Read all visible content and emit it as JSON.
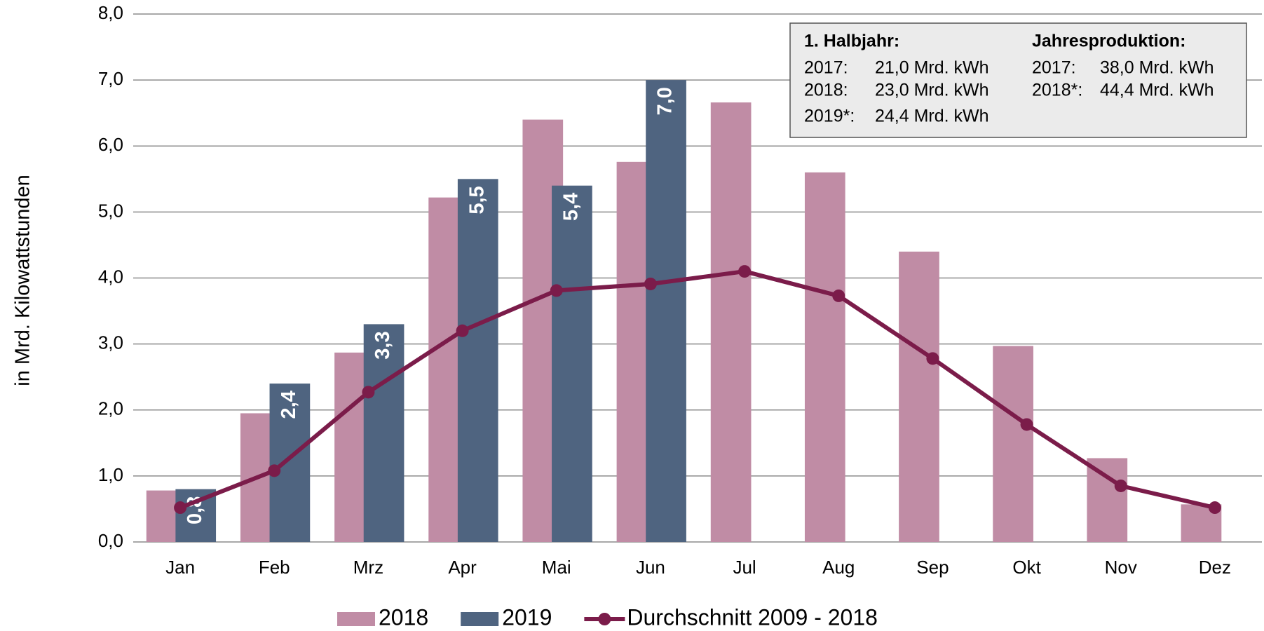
{
  "chart_data": {
    "type": "bar",
    "y_label": "in Mrd. Kilowattstunden",
    "categories": [
      "Jan",
      "Feb",
      "Mrz",
      "Apr",
      "Mai",
      "Jun",
      "Jul",
      "Aug",
      "Sep",
      "Okt",
      "Nov",
      "Dez"
    ],
    "series": [
      {
        "name": "2018",
        "type": "bar",
        "color": "#c08ca5",
        "values": [
          0.78,
          1.95,
          2.87,
          5.22,
          6.4,
          5.76,
          6.66,
          5.6,
          4.4,
          2.97,
          1.27,
          0.57
        ]
      },
      {
        "name": "2019",
        "type": "bar",
        "color": "#4f6480",
        "values": [
          0.8,
          2.4,
          3.3,
          5.5,
          5.4,
          7.0,
          null,
          null,
          null,
          null,
          null,
          null
        ],
        "value_labels": [
          "0,8",
          "2,4",
          "3,3",
          "5,5",
          "5,4",
          "7,0",
          null,
          null,
          null,
          null,
          null,
          null
        ]
      },
      {
        "name": "Durchschnitt 2009 - 2018",
        "type": "line",
        "color": "#7b1c4a",
        "values": [
          0.52,
          1.08,
          2.27,
          3.2,
          3.81,
          3.91,
          4.1,
          3.73,
          2.78,
          1.78,
          0.85,
          0.52
        ]
      }
    ],
    "ylim": [
      0,
      8
    ],
    "yticks": [
      {
        "value": 0,
        "label": "0,0"
      },
      {
        "value": 1,
        "label": "1,0"
      },
      {
        "value": 2,
        "label": "2,0"
      },
      {
        "value": 3,
        "label": "3,0"
      },
      {
        "value": 4,
        "label": "4,0"
      },
      {
        "value": 5,
        "label": "5,0"
      },
      {
        "value": 6,
        "label": "6,0"
      },
      {
        "value": 7,
        "label": "7,0"
      },
      {
        "value": 8,
        "label": "8,0"
      }
    ],
    "grid": true,
    "legend": "bottom",
    "info_box": {
      "columns": [
        {
          "heading": "1. Halbjahr:",
          "rows": [
            [
              "2017:",
              "21,0 Mrd. kWh"
            ],
            [
              "2018:",
              "23,0 Mrd. kWh"
            ],
            [
              "2019*:",
              "24,4 Mrd. kWh"
            ]
          ]
        },
        {
          "heading": "Jahresproduktion:",
          "rows": [
            [
              "2017:",
              "38,0 Mrd. kWh"
            ],
            [
              "2018*:",
              "44,4 Mrd. kWh"
            ]
          ]
        }
      ]
    }
  }
}
